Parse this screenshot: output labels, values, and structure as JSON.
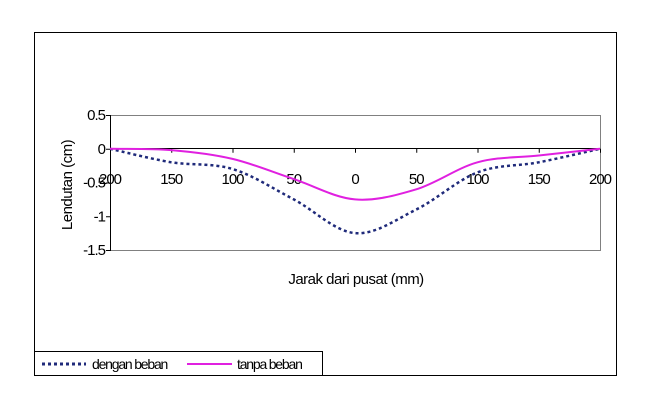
{
  "chart_data": {
    "type": "line",
    "title": "",
    "xlabel": "Jarak dari pusat (mm)",
    "ylabel": "Lendutan (cm)",
    "xlim": [
      -200,
      200
    ],
    "ylim": [
      -1.5,
      0.5
    ],
    "grid": false,
    "legend_position": "bottom-left",
    "x_tick_labels": [
      "200",
      "150",
      "100",
      "50",
      "0",
      "50",
      "100",
      "150",
      "200"
    ],
    "y_tick_labels": [
      "0.5",
      "0",
      "-0.5",
      "-1",
      "-1.5"
    ],
    "series": [
      {
        "name": "dengan beban",
        "color": "#1f2a7a",
        "style": "dotted",
        "x": [
          -200,
          -150,
          -100,
          -50,
          0,
          50,
          100,
          150,
          200
        ],
        "y": [
          0,
          -0.2,
          -0.3,
          -0.75,
          -1.25,
          -0.9,
          -0.35,
          -0.2,
          0
        ]
      },
      {
        "name": "tanpa beban",
        "color": "#e020e0",
        "style": "solid",
        "x": [
          -200,
          -150,
          -100,
          -50,
          0,
          50,
          100,
          150,
          200
        ],
        "y": [
          0,
          -0.02,
          -0.15,
          -0.45,
          -0.75,
          -0.6,
          -0.2,
          -0.1,
          0
        ]
      }
    ]
  }
}
